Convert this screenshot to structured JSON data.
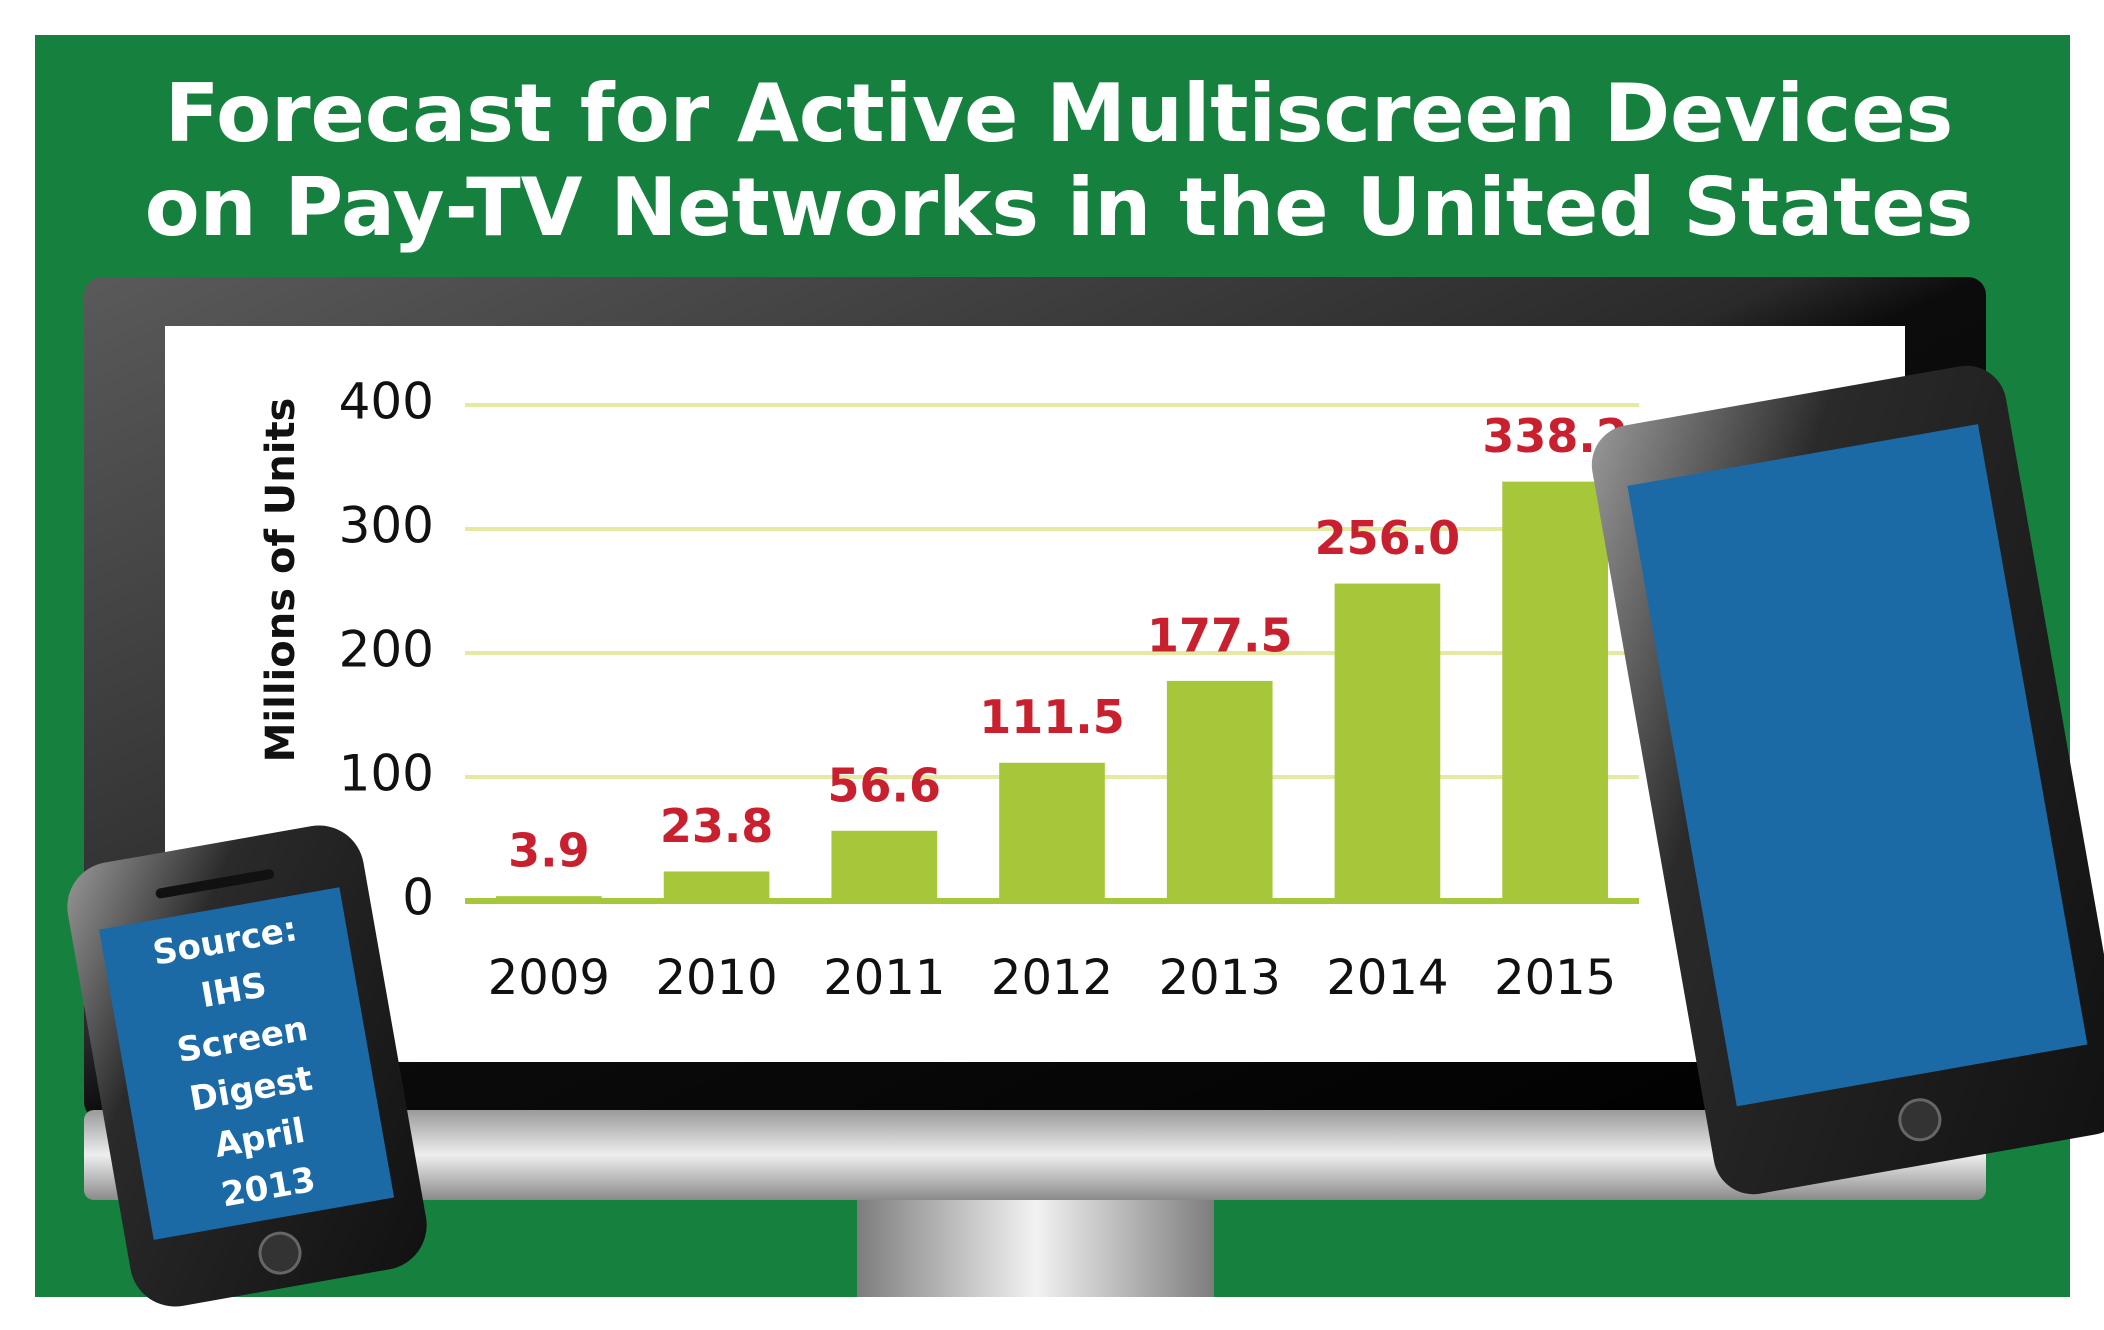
{
  "chart_data": {
    "type": "bar",
    "title": [
      "Forecast for Active Multiscreen Devices",
      "on Pay-TV Networks in the United States"
    ],
    "y_label": "Millions of Units",
    "categories": [
      "2009",
      "2010",
      "2011",
      "2012",
      "2013",
      "2014",
      "2015"
    ],
    "values": [
      3.9,
      23.8,
      56.6,
      111.5,
      177.5,
      256.0,
      338.2
    ],
    "value_labels": [
      "3.9",
      "23.8",
      "56.6",
      "111.5",
      "177.5",
      "256.0",
      "338.2"
    ],
    "color": "#a6c73a",
    "label_color": "#c8202f",
    "ylim": [
      0,
      400
    ],
    "yticks": [
      0,
      100,
      200,
      300,
      400
    ],
    "grid": true,
    "source": [
      "Source:",
      "IHS",
      "Screen",
      "Digest",
      "April",
      "2013"
    ]
  }
}
